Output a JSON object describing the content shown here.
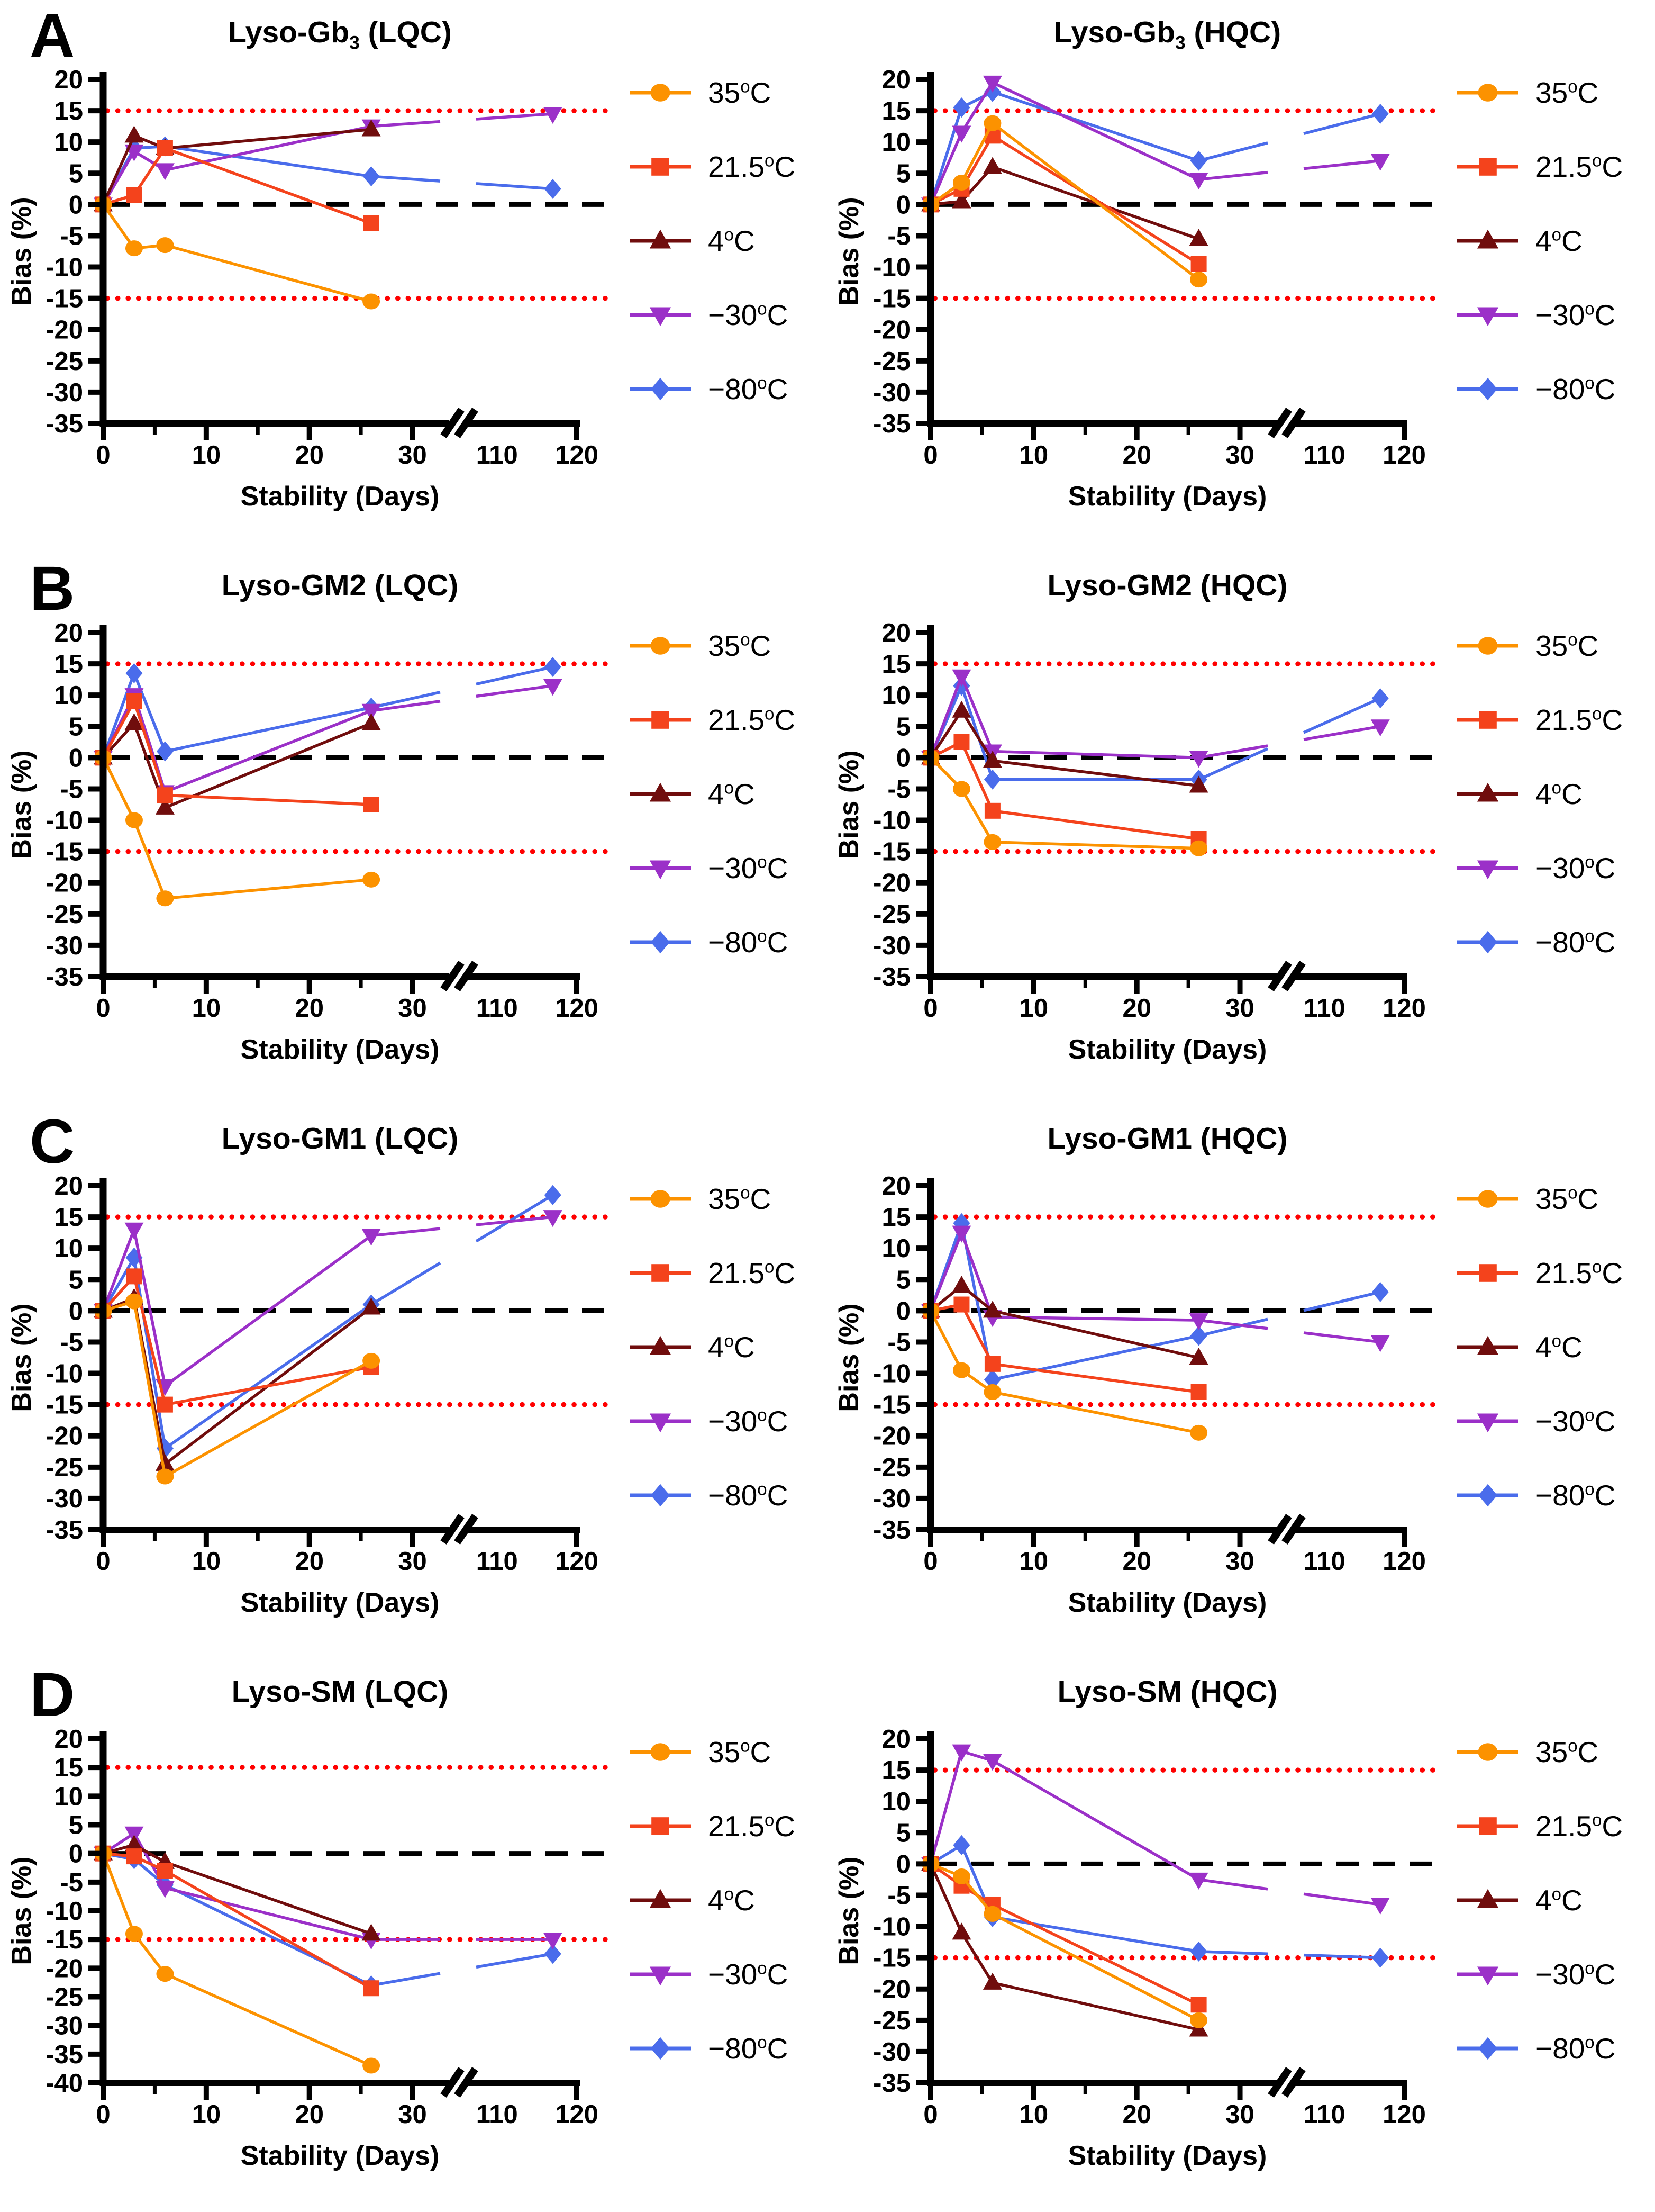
{
  "figure": {
    "y_axis_label": "Bias (%)",
    "x_axis_label": "Stability (Days)",
    "x_ticks_major": [
      0,
      10,
      20,
      30
    ],
    "x_ticks_minor": [
      5,
      15,
      25
    ],
    "x_break_labels": [
      110,
      120
    ],
    "axis_break_between": [
      30,
      110
    ],
    "limit_lines": {
      "upper": 15,
      "lower": -15,
      "zero": 0,
      "limit_color": "#FF0000",
      "zero_color": "#000000"
    },
    "axis_color": "#000000"
  },
  "legend": {
    "degree": "o",
    "unit": "C",
    "items": [
      {
        "id": "t35",
        "label": "35",
        "color": "#FC9200",
        "marker": "circle"
      },
      {
        "id": "t21",
        "label": "21.5",
        "color": "#F4431C",
        "marker": "square"
      },
      {
        "id": "t4",
        "label": "4",
        "color": "#700D0D",
        "marker": "triangle-up"
      },
      {
        "id": "t30",
        "label": "−30",
        "color": "#9B30C8",
        "marker": "triangle-down"
      },
      {
        "id": "t80",
        "label": "−80",
        "color": "#4A6CEB",
        "marker": "diamond"
      }
    ]
  },
  "chart_data": [
    {
      "type": "line",
      "panel_letter": "A",
      "title": {
        "prefix": "Lyso-Gb",
        "sub": "3",
        "suffix": " (LQC)"
      },
      "xlabel": "Stability (Days)",
      "ylabel": "Bias (%)",
      "ylim": [
        -35,
        20
      ],
      "series": [
        {
          "id": "t35",
          "name": "35oC",
          "x": [
            0,
            3,
            6,
            26
          ],
          "y": [
            0,
            -7,
            -6.5,
            -15.5
          ]
        },
        {
          "id": "t21",
          "name": "21.5oC",
          "x": [
            0,
            3,
            6,
            26
          ],
          "y": [
            0,
            1.5,
            9,
            -3
          ]
        },
        {
          "id": "t4",
          "name": "4oC",
          "x": [
            0,
            3,
            6,
            26
          ],
          "y": [
            0,
            11,
            9,
            12
          ]
        },
        {
          "id": "t30",
          "name": "−30oC",
          "x": [
            0,
            3,
            6,
            26,
            117
          ],
          "y": [
            0,
            8.5,
            5.5,
            12.5,
            14.5
          ]
        },
        {
          "id": "t80",
          "name": "−80oC",
          "x": [
            0,
            3,
            6,
            26,
            117
          ],
          "y": [
            0,
            9,
            9.3,
            4.5,
            2.5
          ]
        }
      ]
    },
    {
      "type": "line",
      "panel_letter": "",
      "title": {
        "prefix": "Lyso-Gb",
        "sub": "3",
        "suffix": " (HQC)"
      },
      "xlabel": "Stability (Days)",
      "ylabel": "Bias (%)",
      "ylim": [
        -35,
        20
      ],
      "series": [
        {
          "id": "t35",
          "name": "35oC",
          "x": [
            0,
            3,
            6,
            26
          ],
          "y": [
            0,
            3.5,
            13,
            -12
          ]
        },
        {
          "id": "t21",
          "name": "21.5oC",
          "x": [
            0,
            3,
            6,
            26
          ],
          "y": [
            0,
            2.5,
            11,
            -9.5
          ]
        },
        {
          "id": "t4",
          "name": "4oC",
          "x": [
            0,
            3,
            6,
            26
          ],
          "y": [
            0,
            0.5,
            6,
            -5.5
          ]
        },
        {
          "id": "t30",
          "name": "−30oC",
          "x": [
            0,
            3,
            6,
            26,
            117
          ],
          "y": [
            0,
            11.5,
            19.5,
            4,
            7
          ]
        },
        {
          "id": "t80",
          "name": "−80oC",
          "x": [
            0,
            3,
            6,
            26,
            117
          ],
          "y": [
            0,
            15.5,
            18,
            7,
            14.5
          ]
        }
      ]
    },
    {
      "type": "line",
      "panel_letter": "B",
      "title": {
        "prefix": "Lyso-GM2",
        "sub": "",
        "suffix": " (LQC)"
      },
      "xlabel": "Stability (Days)",
      "ylabel": "Bias (%)",
      "ylim": [
        -35,
        20
      ],
      "series": [
        {
          "id": "t35",
          "name": "35oC",
          "x": [
            0,
            3,
            6,
            26
          ],
          "y": [
            0,
            -10,
            -22.5,
            -19.5
          ]
        },
        {
          "id": "t21",
          "name": "21.5oC",
          "x": [
            0,
            3,
            6,
            26
          ],
          "y": [
            0,
            9,
            -6,
            -7.5
          ]
        },
        {
          "id": "t4",
          "name": "4oC",
          "x": [
            0,
            3,
            6,
            26
          ],
          "y": [
            0,
            5.5,
            -8,
            5.5
          ]
        },
        {
          "id": "t30",
          "name": "−30oC",
          "x": [
            0,
            3,
            6,
            26,
            117
          ],
          "y": [
            0,
            10,
            -5.5,
            7.5,
            11.5
          ]
        },
        {
          "id": "t80",
          "name": "−80oC",
          "x": [
            0,
            3,
            6,
            26,
            117
          ],
          "y": [
            0,
            13.5,
            1,
            8,
            14.5
          ]
        }
      ]
    },
    {
      "type": "line",
      "panel_letter": "",
      "title": {
        "prefix": "Lyso-GM2",
        "sub": "",
        "suffix": " (HQC)"
      },
      "xlabel": "Stability (Days)",
      "ylabel": "Bias (%)",
      "ylim": [
        -35,
        20
      ],
      "series": [
        {
          "id": "t35",
          "name": "35oC",
          "x": [
            0,
            3,
            6,
            26
          ],
          "y": [
            0,
            -5,
            -13.5,
            -14.5
          ]
        },
        {
          "id": "t21",
          "name": "21.5oC",
          "x": [
            0,
            3,
            6,
            26
          ],
          "y": [
            0,
            2.5,
            -8.5,
            -13
          ]
        },
        {
          "id": "t4",
          "name": "4oC",
          "x": [
            0,
            3,
            6,
            26
          ],
          "y": [
            0,
            7.5,
            -0.5,
            -4.5
          ]
        },
        {
          "id": "t30",
          "name": "−30oC",
          "x": [
            0,
            3,
            6,
            26,
            117
          ],
          "y": [
            0,
            13,
            1,
            0,
            5
          ]
        },
        {
          "id": "t80",
          "name": "−80oC",
          "x": [
            0,
            3,
            6,
            26,
            117
          ],
          "y": [
            0,
            11.5,
            -3.5,
            -3.5,
            9.5
          ]
        }
      ]
    },
    {
      "type": "line",
      "panel_letter": "C",
      "title": {
        "prefix": "Lyso-GM1",
        "sub": "",
        "suffix": " (LQC)"
      },
      "xlabel": "Stability (Days)",
      "ylabel": "Bias (%)",
      "ylim": [
        -35,
        20
      ],
      "series": [
        {
          "id": "t35",
          "name": "35oC",
          "x": [
            0,
            3,
            6,
            26
          ],
          "y": [
            0,
            1.5,
            -26.5,
            -8
          ]
        },
        {
          "id": "t21",
          "name": "21.5oC",
          "x": [
            0,
            3,
            6,
            26
          ],
          "y": [
            0,
            5.5,
            -15,
            -9
          ]
        },
        {
          "id": "t4",
          "name": "4oC",
          "x": [
            0,
            3,
            6,
            26
          ],
          "y": [
            0,
            2,
            -24.5,
            0.5
          ]
        },
        {
          "id": "t30",
          "name": "−30oC",
          "x": [
            0,
            3,
            6,
            26,
            117
          ],
          "y": [
            0,
            13,
            -12,
            12,
            15
          ]
        },
        {
          "id": "t80",
          "name": "−80oC",
          "x": [
            0,
            3,
            6,
            26,
            117
          ],
          "y": [
            0,
            8.5,
            -22,
            1,
            18.5
          ]
        }
      ]
    },
    {
      "type": "line",
      "panel_letter": "",
      "title": {
        "prefix": "Lyso-GM1",
        "sub": "",
        "suffix": " (HQC)"
      },
      "xlabel": "Stability (Days)",
      "ylabel": "Bias (%)",
      "ylim": [
        -35,
        20
      ],
      "series": [
        {
          "id": "t35",
          "name": "35oC",
          "x": [
            0,
            3,
            6,
            26
          ],
          "y": [
            0,
            -9.5,
            -13,
            -19.5
          ]
        },
        {
          "id": "t21",
          "name": "21.5oC",
          "x": [
            0,
            3,
            6,
            26
          ],
          "y": [
            0,
            1,
            -8.5,
            -13
          ]
        },
        {
          "id": "t4",
          "name": "4oC",
          "x": [
            0,
            3,
            6,
            26
          ],
          "y": [
            0,
            4,
            0,
            -7.5
          ]
        },
        {
          "id": "t30",
          "name": "−30oC",
          "x": [
            0,
            3,
            6,
            26,
            117
          ],
          "y": [
            0,
            12.5,
            -1,
            -1.5,
            -5
          ]
        },
        {
          "id": "t80",
          "name": "−80oC",
          "x": [
            0,
            3,
            6,
            26,
            117
          ],
          "y": [
            0,
            14,
            -11,
            -4,
            3
          ]
        }
      ]
    },
    {
      "type": "line",
      "panel_letter": "D",
      "title": {
        "prefix": "Lyso-SM",
        "sub": "",
        "suffix": " (LQC)"
      },
      "xlabel": "Stability (Days)",
      "ylabel": "Bias (%)",
      "ylim": [
        -40,
        20
      ],
      "series": [
        {
          "id": "t35",
          "name": "35oC",
          "x": [
            0,
            3,
            6,
            26
          ],
          "y": [
            0,
            -14,
            -21,
            -37
          ]
        },
        {
          "id": "t21",
          "name": "21.5oC",
          "x": [
            0,
            3,
            6,
            26
          ],
          "y": [
            0,
            -0.5,
            -3,
            -23.5
          ]
        },
        {
          "id": "t4",
          "name": "4oC",
          "x": [
            0,
            3,
            6,
            26
          ],
          "y": [
            0,
            1.5,
            -1.5,
            -14
          ]
        },
        {
          "id": "t30",
          "name": "−30oC",
          "x": [
            0,
            3,
            6,
            26,
            117
          ],
          "y": [
            0,
            3.5,
            -6,
            -15,
            -15
          ]
        },
        {
          "id": "t80",
          "name": "−80oC",
          "x": [
            0,
            3,
            6,
            26,
            117
          ],
          "y": [
            0,
            -1,
            -5.5,
            -23,
            -17.5
          ]
        }
      ]
    },
    {
      "type": "line",
      "panel_letter": "",
      "title": {
        "prefix": "Lyso-SM",
        "sub": "",
        "suffix": " (HQC)"
      },
      "xlabel": "Stability (Days)",
      "ylabel": "Bias (%)",
      "ylim": [
        -35,
        20
      ],
      "series": [
        {
          "id": "t35",
          "name": "35oC",
          "x": [
            0,
            3,
            6,
            26
          ],
          "y": [
            0,
            -2,
            -8,
            -25
          ]
        },
        {
          "id": "t21",
          "name": "21.5oC",
          "x": [
            0,
            3,
            6,
            26
          ],
          "y": [
            0,
            -3.5,
            -6.5,
            -22.5
          ]
        },
        {
          "id": "t4",
          "name": "4oC",
          "x": [
            0,
            3,
            6,
            26
          ],
          "y": [
            0,
            -11,
            -19,
            -26.5
          ]
        },
        {
          "id": "t30",
          "name": "−30oC",
          "x": [
            0,
            3,
            6,
            26,
            117
          ],
          "y": [
            0,
            18,
            16.5,
            -2.5,
            -6.5
          ]
        },
        {
          "id": "t80",
          "name": "−80oC",
          "x": [
            0,
            3,
            6,
            26,
            117
          ],
          "y": [
            0,
            3,
            -8.5,
            -14,
            -15
          ]
        }
      ]
    }
  ]
}
